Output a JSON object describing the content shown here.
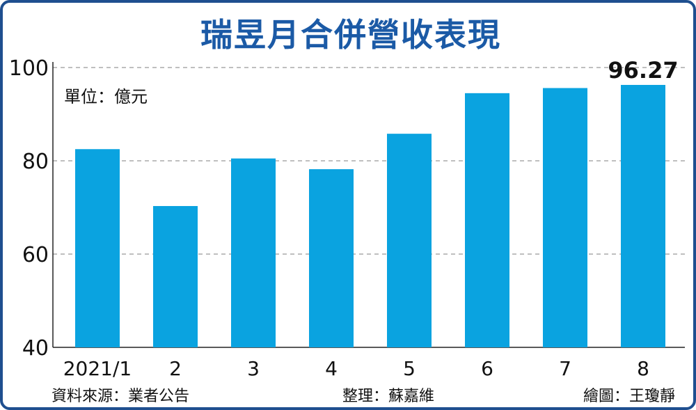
{
  "title": "瑞昱月合併營收表現",
  "unit_label": "單位：億元",
  "footer": {
    "source": "資料來源：業者公告",
    "editor": "整理：蘇嘉維",
    "artist": "繪圖：王瓊靜"
  },
  "colors": {
    "bar": "#0aa3e0",
    "title": "#1b5aa6",
    "border": "#1f4f8f",
    "grid": "#999999"
  },
  "chart_data": {
    "type": "bar",
    "title": "瑞昱月合併營收表現",
    "ylabel": "單位：億元",
    "categories": [
      "2021/1",
      "2",
      "3",
      "4",
      "5",
      "6",
      "7",
      "8"
    ],
    "values": [
      82.5,
      70.3,
      80.5,
      78.2,
      85.8,
      94.5,
      95.6,
      96.27
    ],
    "ylim": [
      40,
      100
    ],
    "yticks": [
      40,
      60,
      80,
      100
    ],
    "annotations": [
      {
        "category": "8",
        "text": "96.27"
      }
    ],
    "grid": "horizontal dashed"
  }
}
